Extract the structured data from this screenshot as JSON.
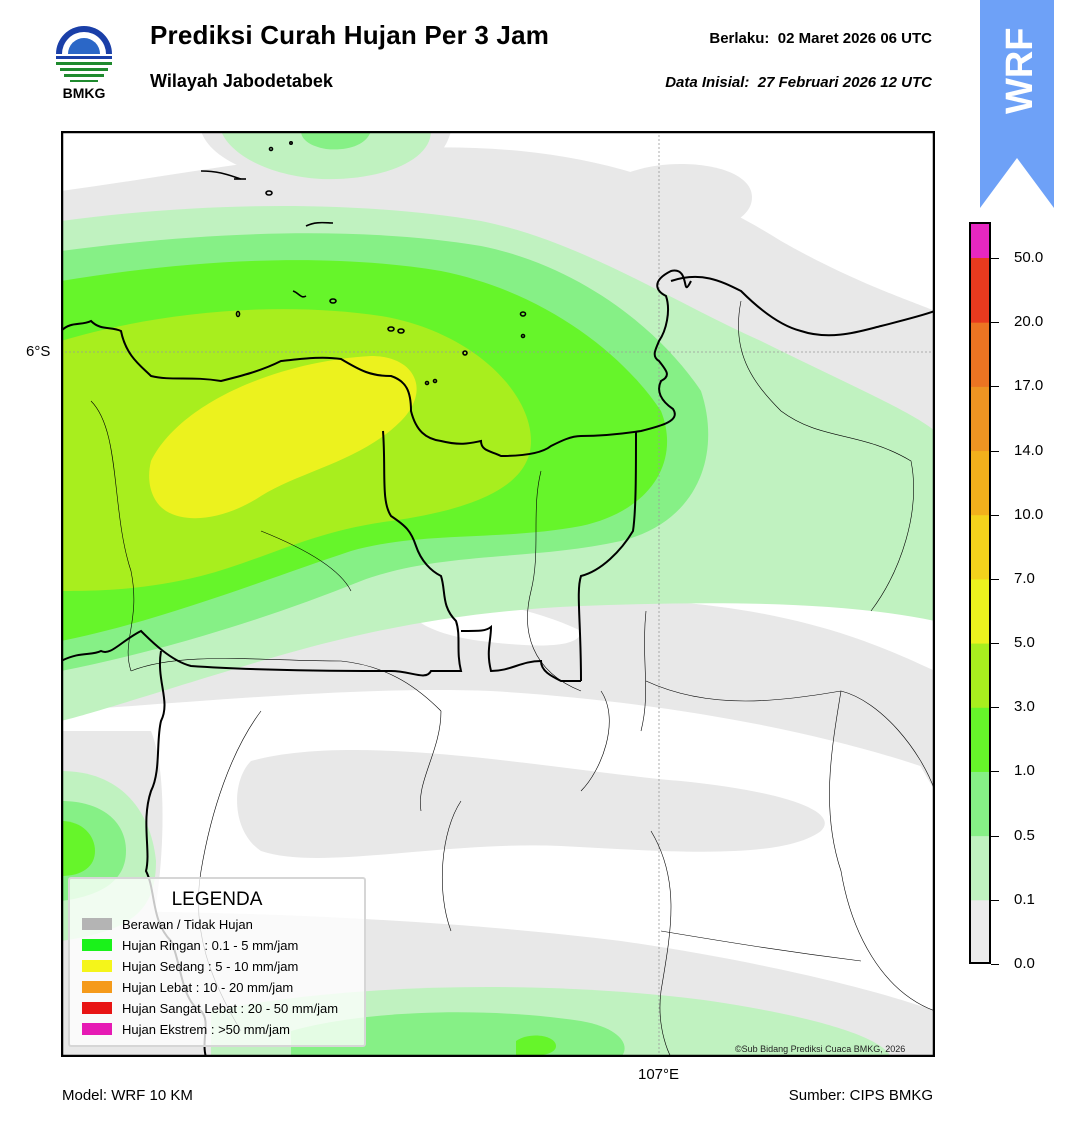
{
  "header": {
    "title": "Prediksi Curah Hujan Per 3 Jam",
    "subtitle": "Wilayah Jabodetabek",
    "valid_label": "Berlaku:",
    "valid_value": "02 Maret 2026 06 UTC",
    "init_label": "Data Inisial:",
    "init_value": "27 Februari 2026 12 UTC"
  },
  "logo": {
    "text": "BMKG",
    "icon": "bmkg-logo-icon"
  },
  "badge": {
    "text": "WRF",
    "color": "#6ea1f7"
  },
  "map": {
    "lat_label": "6°S",
    "lon_label": "107°E",
    "copyright": "©Sub Bidang Prediksi Cuaca BMKG, 2026"
  },
  "legend": {
    "title": "LEGENDA",
    "items": [
      {
        "label": "Berawan / Tidak Hujan",
        "color": "#b4b4b4"
      },
      {
        "label": "Hujan Ringan : 0.1 - 5 mm/jam",
        "color": "#1af21a"
      },
      {
        "label": "Hujan Sedang : 5 - 10 mm/jam",
        "color": "#f5f51a"
      },
      {
        "label": "Hujan Lebat : 10 - 20 mm/jam",
        "color": "#f59a1a"
      },
      {
        "label": "Hujan Sangat Lebat : 20 - 50 mm/jam",
        "color": "#e81414"
      },
      {
        "label": "Hujan Ekstrem : >50 mm/jam",
        "color": "#e61ab4"
      }
    ]
  },
  "colorbar": {
    "ticks": [
      "0.0",
      "0.1",
      "0.5",
      "1.0",
      "3.0",
      "5.0",
      "7.0",
      "10.0",
      "14.0",
      "17.0",
      "20.0",
      "50.0"
    ],
    "colors": [
      "#ebebeb",
      "#c0f2c0",
      "#86f086",
      "#66f52a",
      "#a8ee1e",
      "#ecf21e",
      "#f4d21c",
      "#f2b01c",
      "#ee9422",
      "#ec7422",
      "#e83a1e",
      "#e627c0"
    ]
  },
  "footer": {
    "model": "Model: WRF 10 KM",
    "source": "Sumber: CIPS BMKG"
  }
}
